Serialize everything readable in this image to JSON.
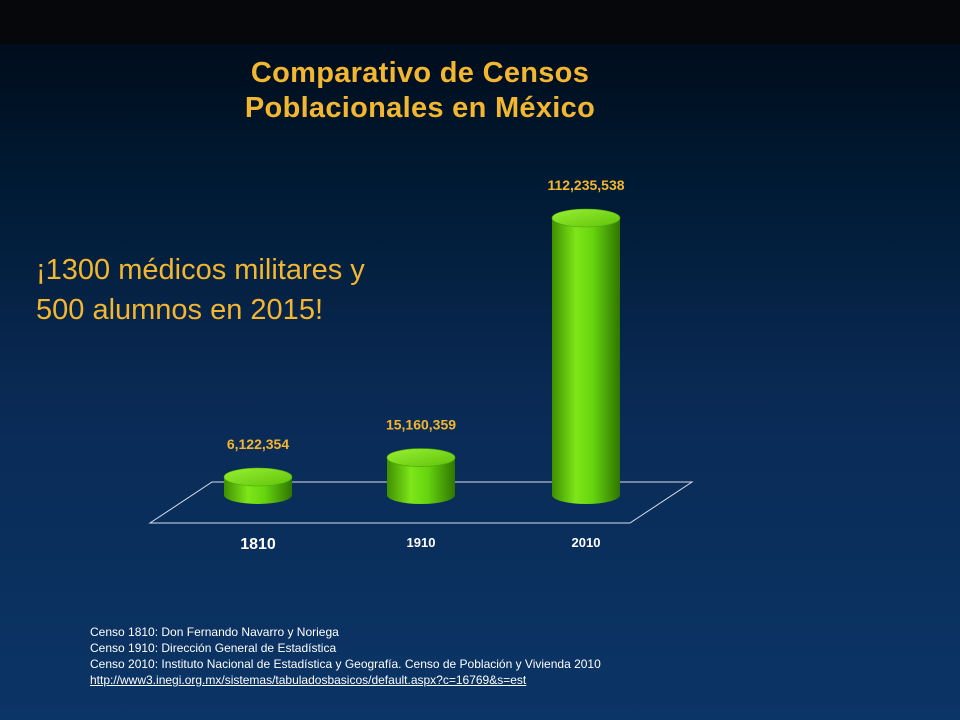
{
  "chart_data": {
    "type": "bar",
    "title": "Comparativo de Censos Poblacionales en México",
    "title_lines": [
      "Comparativo de Censos",
      "Poblacionales en México"
    ],
    "categories": [
      "1810",
      "1910",
      "2010"
    ],
    "values": [
      6122354,
      15160359,
      112235538
    ],
    "data_labels": [
      "6,122,354",
      "15,160,359",
      "112,235,538"
    ],
    "xlabel": "",
    "ylabel": "",
    "grid": false,
    "legend": "none",
    "bar_color": "#66dd11",
    "label_color": "#f2b630"
  },
  "callout": {
    "lines": [
      "¡1300 médicos militares y",
      "500 alumnos en 2015!"
    ],
    "color": "#f2b630"
  },
  "footer": {
    "sources": [
      "Censo 1810: Don Fernando Navarro y Noriega",
      "Censo 1910: Dirección General  de Estadística",
      "Censo 2010: Instituto Nacional de Estadística y Geografía.  Censo de Población y Vivienda 2010"
    ],
    "link": "http://www3.inegi.org.mx/sistemas/tabuladosbasicos/default.aspx?c=16769&s=est"
  }
}
